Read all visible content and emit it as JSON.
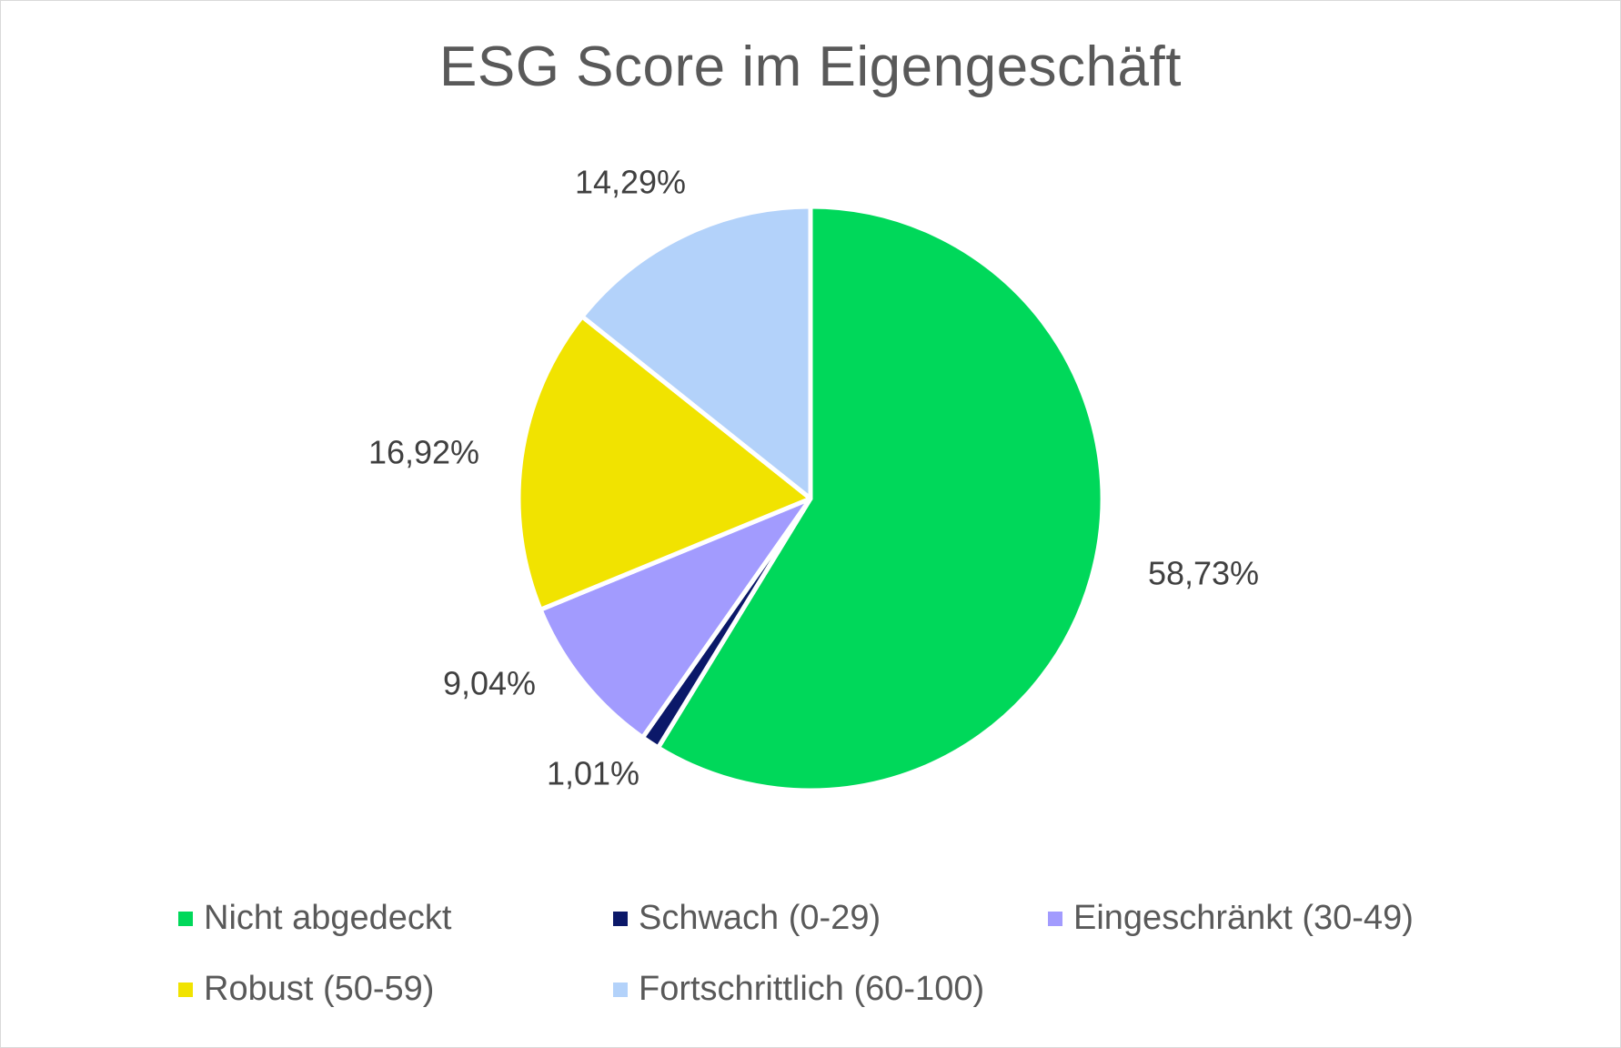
{
  "chart_data": {
    "type": "pie",
    "title": "ESG Score im Eigengeschäft",
    "legend_position": "bottom",
    "slices": [
      {
        "name": "Nicht abgedeckt",
        "value": 58.73,
        "label": "58,73%",
        "color": "#00D85A"
      },
      {
        "name": "Schwach (0-29)",
        "value": 1.01,
        "label": "1,01%",
        "color": "#0B1869"
      },
      {
        "name": "Eingeschränkt (30-49)",
        "value": 9.04,
        "label": "9,04%",
        "color": "#A29BFE"
      },
      {
        "name": "Robust (50-59)",
        "value": 16.92,
        "label": "16,92%",
        "color": "#F1E300"
      },
      {
        "name": "Fortschrittlich (60-100)",
        "value": 14.29,
        "label": "14,29%",
        "color": "#B3D2FA"
      }
    ]
  }
}
